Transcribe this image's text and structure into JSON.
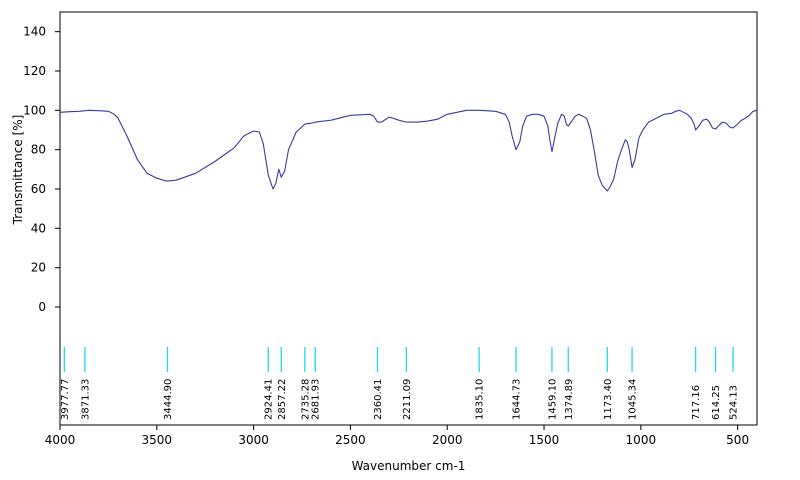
{
  "chart_data": {
    "type": "line",
    "title": "",
    "xlabel": "Wavenumber cm-1",
    "ylabel": "Transmittance [%]",
    "xlim": [
      4000,
      400
    ],
    "ylim": [
      -60,
      150
    ],
    "x_reversed": true,
    "x_ticks": [
      "4000",
      "3500",
      "3000",
      "2500",
      "2000",
      "1500",
      "1000",
      "500"
    ],
    "y_ticks": [
      "0",
      "20",
      "40",
      "60",
      "80",
      "100",
      "120",
      "140"
    ],
    "grid": false,
    "line_color": "#3a3aa0",
    "peak_marker_color": "#22d8e8",
    "series": [
      {
        "x": [
          4000,
          3950,
          3900,
          3850,
          3800,
          3750,
          3720,
          3700,
          3650,
          3600,
          3550,
          3500,
          3450,
          3400,
          3300,
          3200,
          3100,
          3050,
          3000,
          2970,
          2950,
          2924,
          2900,
          2885,
          2870,
          2857,
          2840,
          2820,
          2780,
          2735,
          2700,
          2681,
          2600,
          2500,
          2400,
          2380,
          2360,
          2340,
          2300,
          2280,
          2250,
          2211,
          2150,
          2100,
          2050,
          2000,
          1950,
          1900,
          1835,
          1800,
          1750,
          1700,
          1680,
          1665,
          1645,
          1625,
          1610,
          1590,
          1560,
          1530,
          1500,
          1480,
          1470,
          1459,
          1445,
          1430,
          1410,
          1395,
          1385,
          1375,
          1360,
          1340,
          1320,
          1300,
          1280,
          1260,
          1240,
          1220,
          1200,
          1173,
          1160,
          1140,
          1120,
          1100,
          1080,
          1070,
          1060,
          1045,
          1030,
          1010,
          990,
          960,
          920,
          880,
          840,
          820,
          800,
          780,
          760,
          740,
          725,
          717,
          700,
          680,
          660,
          650,
          640,
          630,
          614,
          600,
          580,
          560,
          540,
          524,
          500,
          480,
          460,
          440,
          420,
          400
        ],
        "y": [
          99,
          99.3,
          99.5,
          100,
          99.8,
          99.5,
          98,
          96,
          86,
          75,
          68,
          65.5,
          64,
          64.5,
          68,
          74,
          81,
          87,
          89.5,
          89,
          83,
          67,
          60,
          63,
          70,
          66,
          69,
          80,
          89,
          93,
          93.5,
          94,
          95,
          97.5,
          98,
          97,
          94,
          94,
          96.5,
          96,
          95,
          94,
          94,
          94.5,
          95.5,
          98,
          99,
          100,
          100,
          99.8,
          99.5,
          98,
          94,
          87,
          80,
          84,
          92,
          97,
          98,
          98,
          97,
          92,
          85,
          79,
          86,
          93,
          98,
          97,
          93,
          92,
          94,
          97,
          98,
          97,
          96,
          90,
          79,
          67,
          62,
          59,
          61,
          65,
          74,
          80,
          85,
          84,
          80,
          71,
          75,
          86,
          90,
          94,
          96,
          98,
          98.5,
          99.5,
          100,
          99,
          98,
          96,
          93,
          90,
          92,
          95,
          95.5,
          94.5,
          93,
          91,
          90.5,
          92,
          94,
          93.5,
          91.5,
          91,
          93,
          95,
          96,
          97.5,
          99.5,
          100
        ]
      }
    ],
    "peaks": [
      "3977.77",
      "3871.33",
      "3444.90",
      "2924.41",
      "2857.22",
      "2735.28",
      "2681.93",
      "2360.41",
      "2211.09",
      "1835.10",
      "1644.73",
      "1459.10",
      "1374.89",
      "1173.40",
      "1045.34",
      "717.16",
      "614.25",
      "524.13"
    ]
  }
}
